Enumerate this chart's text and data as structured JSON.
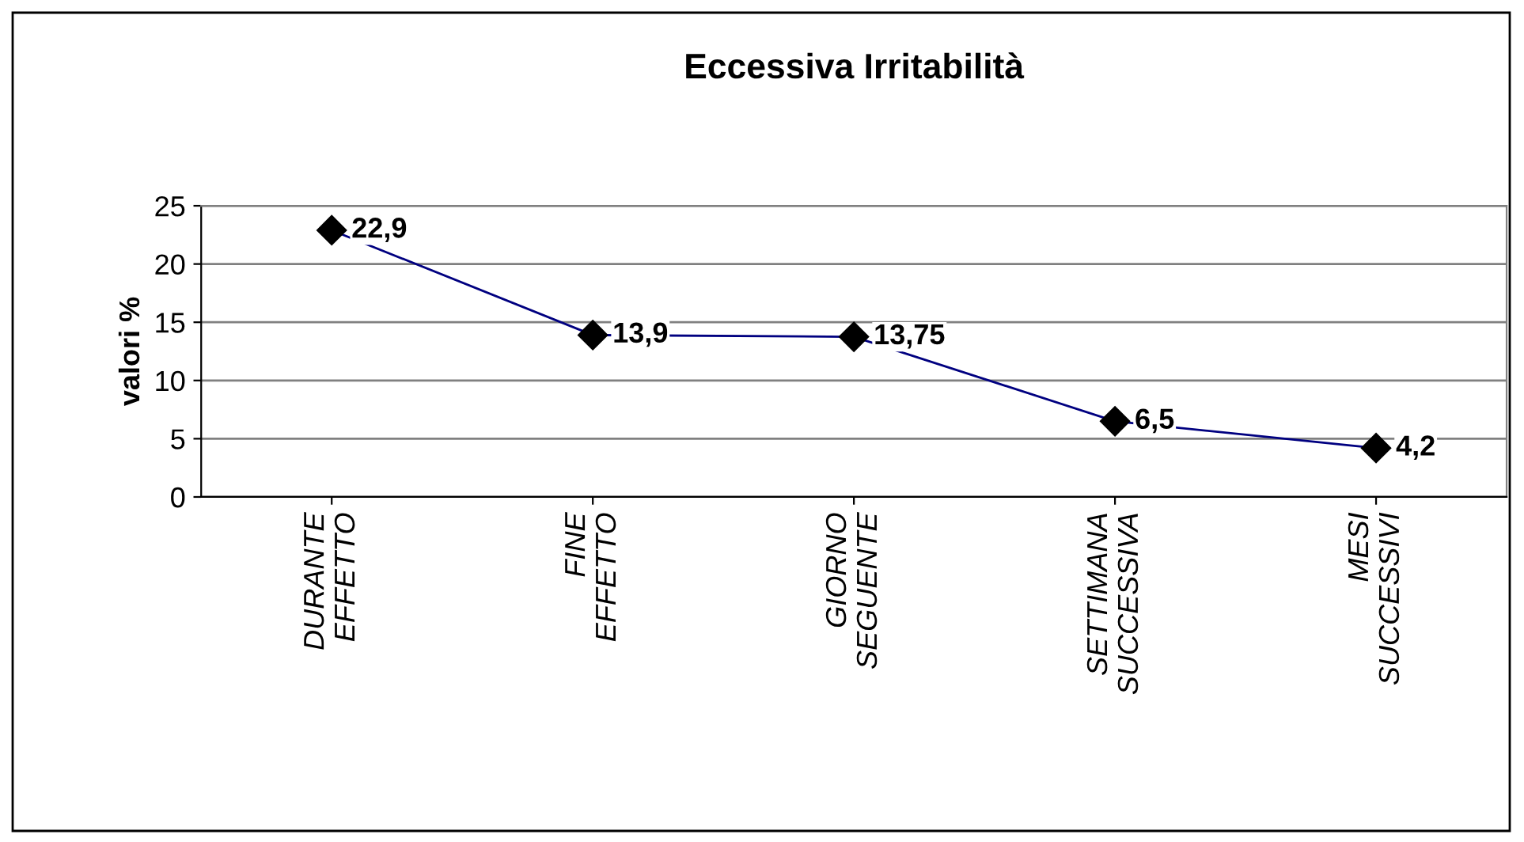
{
  "chart_data": {
    "type": "line",
    "title": "Eccessiva Irritabilità",
    "ylabel": "valori %",
    "categories": [
      "DURANTE\nEFFETTO",
      "FINE\nEFFETTO",
      "GIORNO\nSEGUENTE",
      "SETTIMANA\nSUCCESSIVA",
      "MESI\nSUCCESSIVI"
    ],
    "series": [
      {
        "color": "#000080",
        "values": [
          22.9,
          13.9,
          13.75,
          6.5,
          4.2
        ],
        "value_labels": [
          "22,9",
          "13,9",
          "13,75",
          "6,5",
          "4,2"
        ]
      }
    ],
    "ylim": [
      0,
      25
    ],
    "yticks": [
      0,
      5,
      10,
      15,
      20,
      25
    ],
    "grid": "y",
    "marker": "diamond",
    "line_style": "solid",
    "legend": false
  }
}
